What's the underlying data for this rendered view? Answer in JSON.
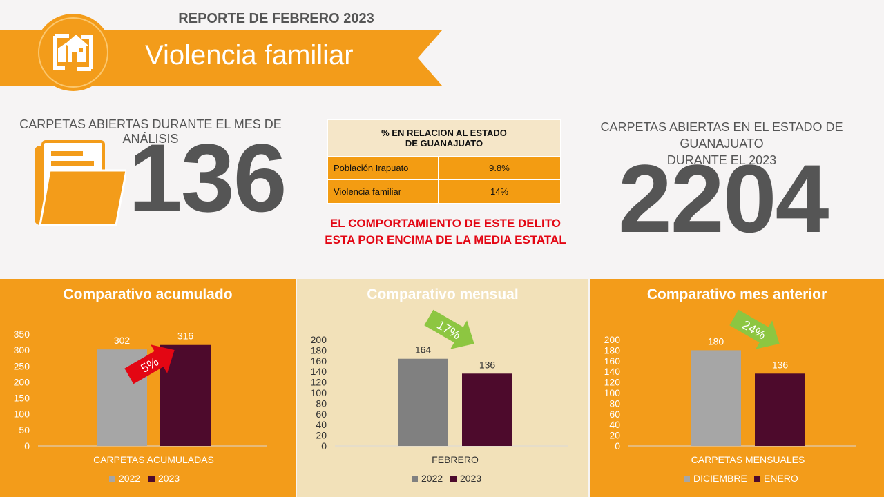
{
  "header": {
    "report_title": "REPORTE DE  FEBRERO 2023",
    "banner_title": "Violencia familiar"
  },
  "kpi_left": {
    "label": "CARPETAS ABIERTAS DURANTE EL MES DE ANÁLISIS",
    "value": "136"
  },
  "kpi_right": {
    "label_line1": "CARPETAS ABIERTAS EN EL ESTADO DE GUANAJUATO",
    "label_line2": "DURANTE EL 2023",
    "value": "2204"
  },
  "percent_table": {
    "header_line1": "% EN RELACION AL ESTADO",
    "header_line2": "DE GUANAJUATO",
    "rows": [
      {
        "label": "Población Irapuato",
        "value": "9.8%"
      },
      {
        "label": "Violencia familiar",
        "value": "14%"
      }
    ]
  },
  "warning": {
    "line1": "EL COMPORTAMIENTO DE ESTE DELITO",
    "line2": "ESTA POR ENCIMA DE LA MEDIA ESTATAL"
  },
  "colors": {
    "orange": "#f39c1a",
    "beige": "#f2e1b9",
    "gray_bar": "#a6a6a6",
    "dark_gray_bar": "#808080",
    "maroon_bar": "#4d0a2c",
    "red_arrow": "#e30613",
    "green_arrow": "#8dc641"
  },
  "chart_data": [
    {
      "type": "bar",
      "title": "Comparativo acumulado",
      "categories": [
        "CARPETAS ACUMULADAS"
      ],
      "series": [
        {
          "name": "2022",
          "values": [
            302
          ],
          "color": "#a6a6a6"
        },
        {
          "name": "2023",
          "values": [
            316
          ],
          "color": "#4d0a2c"
        }
      ],
      "ylim": [
        0,
        350
      ],
      "yticks": [
        0,
        50,
        100,
        150,
        200,
        250,
        300,
        350
      ],
      "annotation": {
        "text": "5%",
        "direction": "up",
        "color": "#e30613"
      },
      "legend": "bottom"
    },
    {
      "type": "bar",
      "title": "Comparativo mensual",
      "categories": [
        "FEBRERO"
      ],
      "series": [
        {
          "name": "2022",
          "values": [
            164
          ],
          "color": "#808080"
        },
        {
          "name": "2023",
          "values": [
            136
          ],
          "color": "#4d0a2c"
        }
      ],
      "ylim": [
        0,
        200
      ],
      "yticks": [
        0,
        20,
        40,
        60,
        80,
        100,
        120,
        140,
        160,
        180,
        200
      ],
      "annotation": {
        "text": "17%",
        "direction": "down",
        "color": "#8dc641"
      },
      "legend": "bottom"
    },
    {
      "type": "bar",
      "title": "Comparativo mes anterior",
      "categories": [
        "CARPETAS MENSUALES"
      ],
      "series": [
        {
          "name": "DICIEMBRE",
          "values": [
            180
          ],
          "color": "#a6a6a6"
        },
        {
          "name": "ENERO",
          "values": [
            136
          ],
          "color": "#4d0a2c"
        }
      ],
      "ylim": [
        0,
        200
      ],
      "yticks": [
        0,
        20,
        40,
        60,
        80,
        100,
        120,
        140,
        160,
        180,
        200
      ],
      "annotation": {
        "text": "24%",
        "direction": "down",
        "color": "#8dc641"
      },
      "legend": "bottom"
    }
  ]
}
